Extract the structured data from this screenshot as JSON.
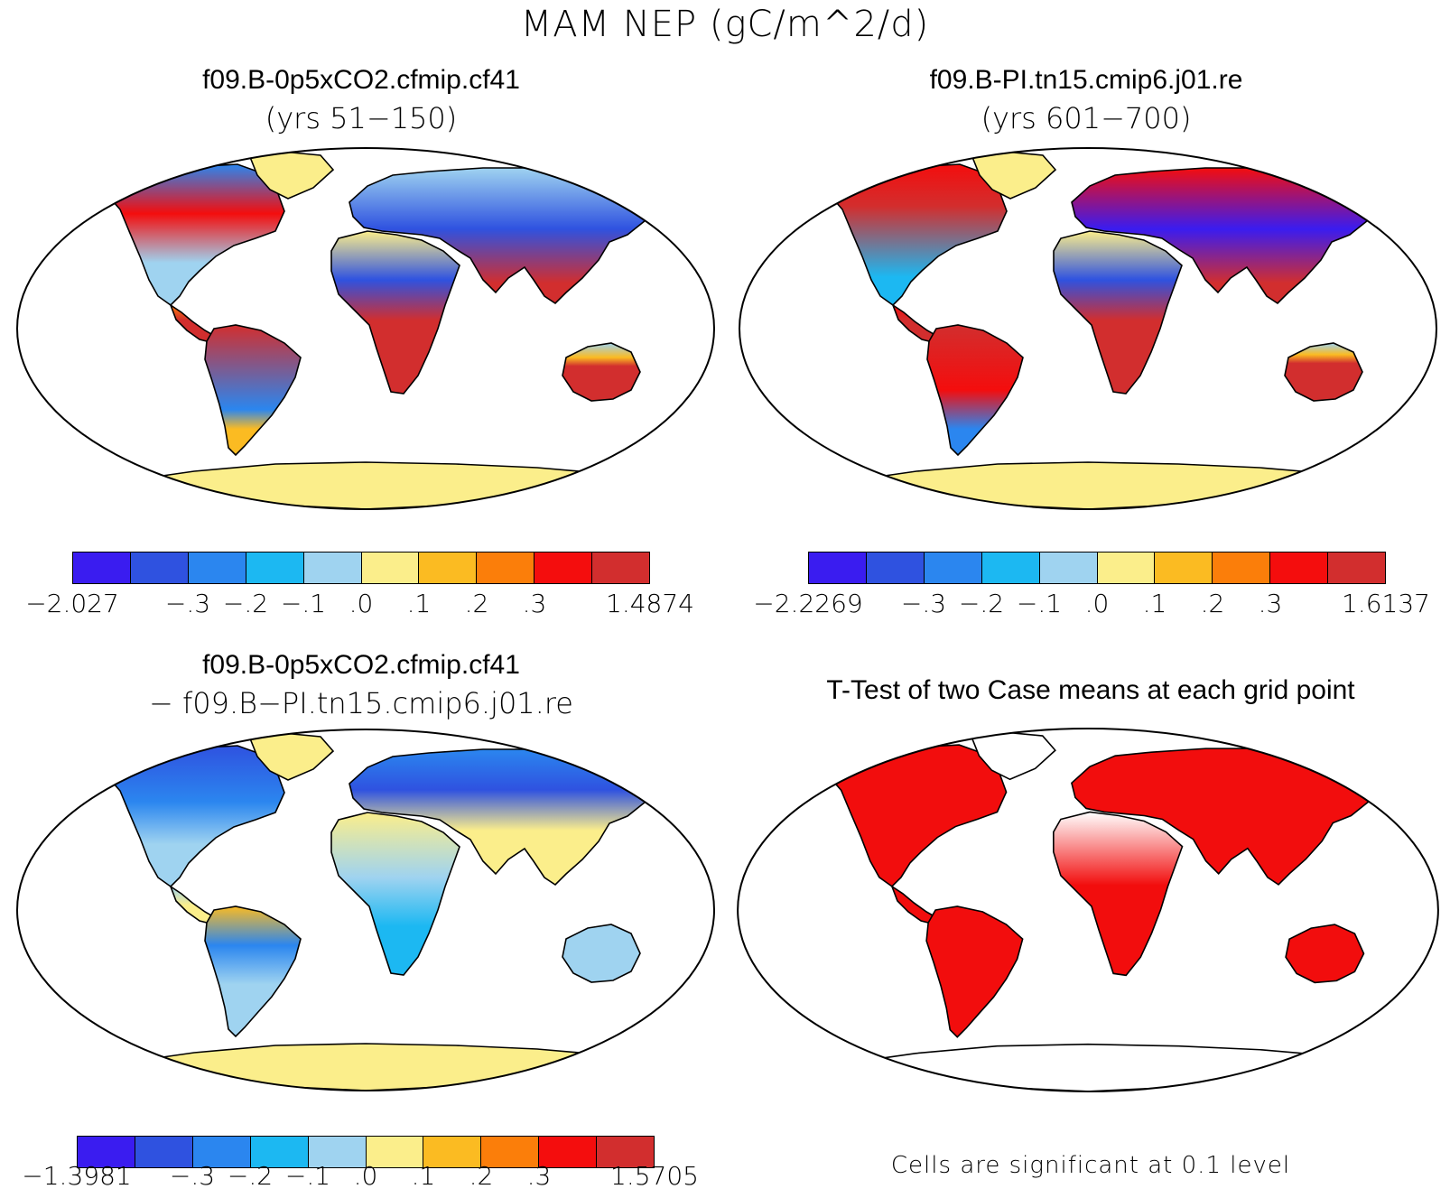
{
  "title": "MAM NEP (gC/m^2/d)",
  "colors": [
    "#3a1cf0",
    "#2f52e0",
    "#2b86ef",
    "#1cb8f2",
    "#9fd3f0",
    "#fbee8b",
    "#fbbb22",
    "#fb7e0a",
    "#f40d0d",
    "#d22e2e"
  ],
  "panels": {
    "tl": {
      "title": "f09.B-0p5xCO2.cfmip.cf41",
      "subtitle": "(yrs 51−150)",
      "colorbar": {
        "min_label": "−2.027",
        "max_label": "1.4874",
        "tick_labels": [
          "−.3",
          "−.2",
          "−.1",
          ".0",
          ".1",
          ".2",
          ".3"
        ]
      }
    },
    "tr": {
      "title": "f09.B-PI.tn15.cmip6.j01.re",
      "subtitle": "(yrs 601−700)",
      "colorbar": {
        "min_label": "−2.2269",
        "max_label": "1.6137",
        "tick_labels": [
          "−.3",
          "−.2",
          "−.1",
          ".0",
          ".1",
          ".2",
          ".3"
        ]
      }
    },
    "bl": {
      "title": "f09.B-0p5xCO2.cfmip.cf41",
      "subtitle": "− f09.B−PI.tn15.cmip6.j01.re",
      "colorbar": {
        "min_label": "−1.3981",
        "max_label": "1.5705",
        "tick_labels": [
          "−.3",
          "−.2",
          "−.1",
          ".0",
          ".1",
          ".2",
          ".3"
        ]
      }
    },
    "br": {
      "title": "T-Test of two Case means at each grid point",
      "note": "Cells are significant at 0.1 level"
    }
  }
}
